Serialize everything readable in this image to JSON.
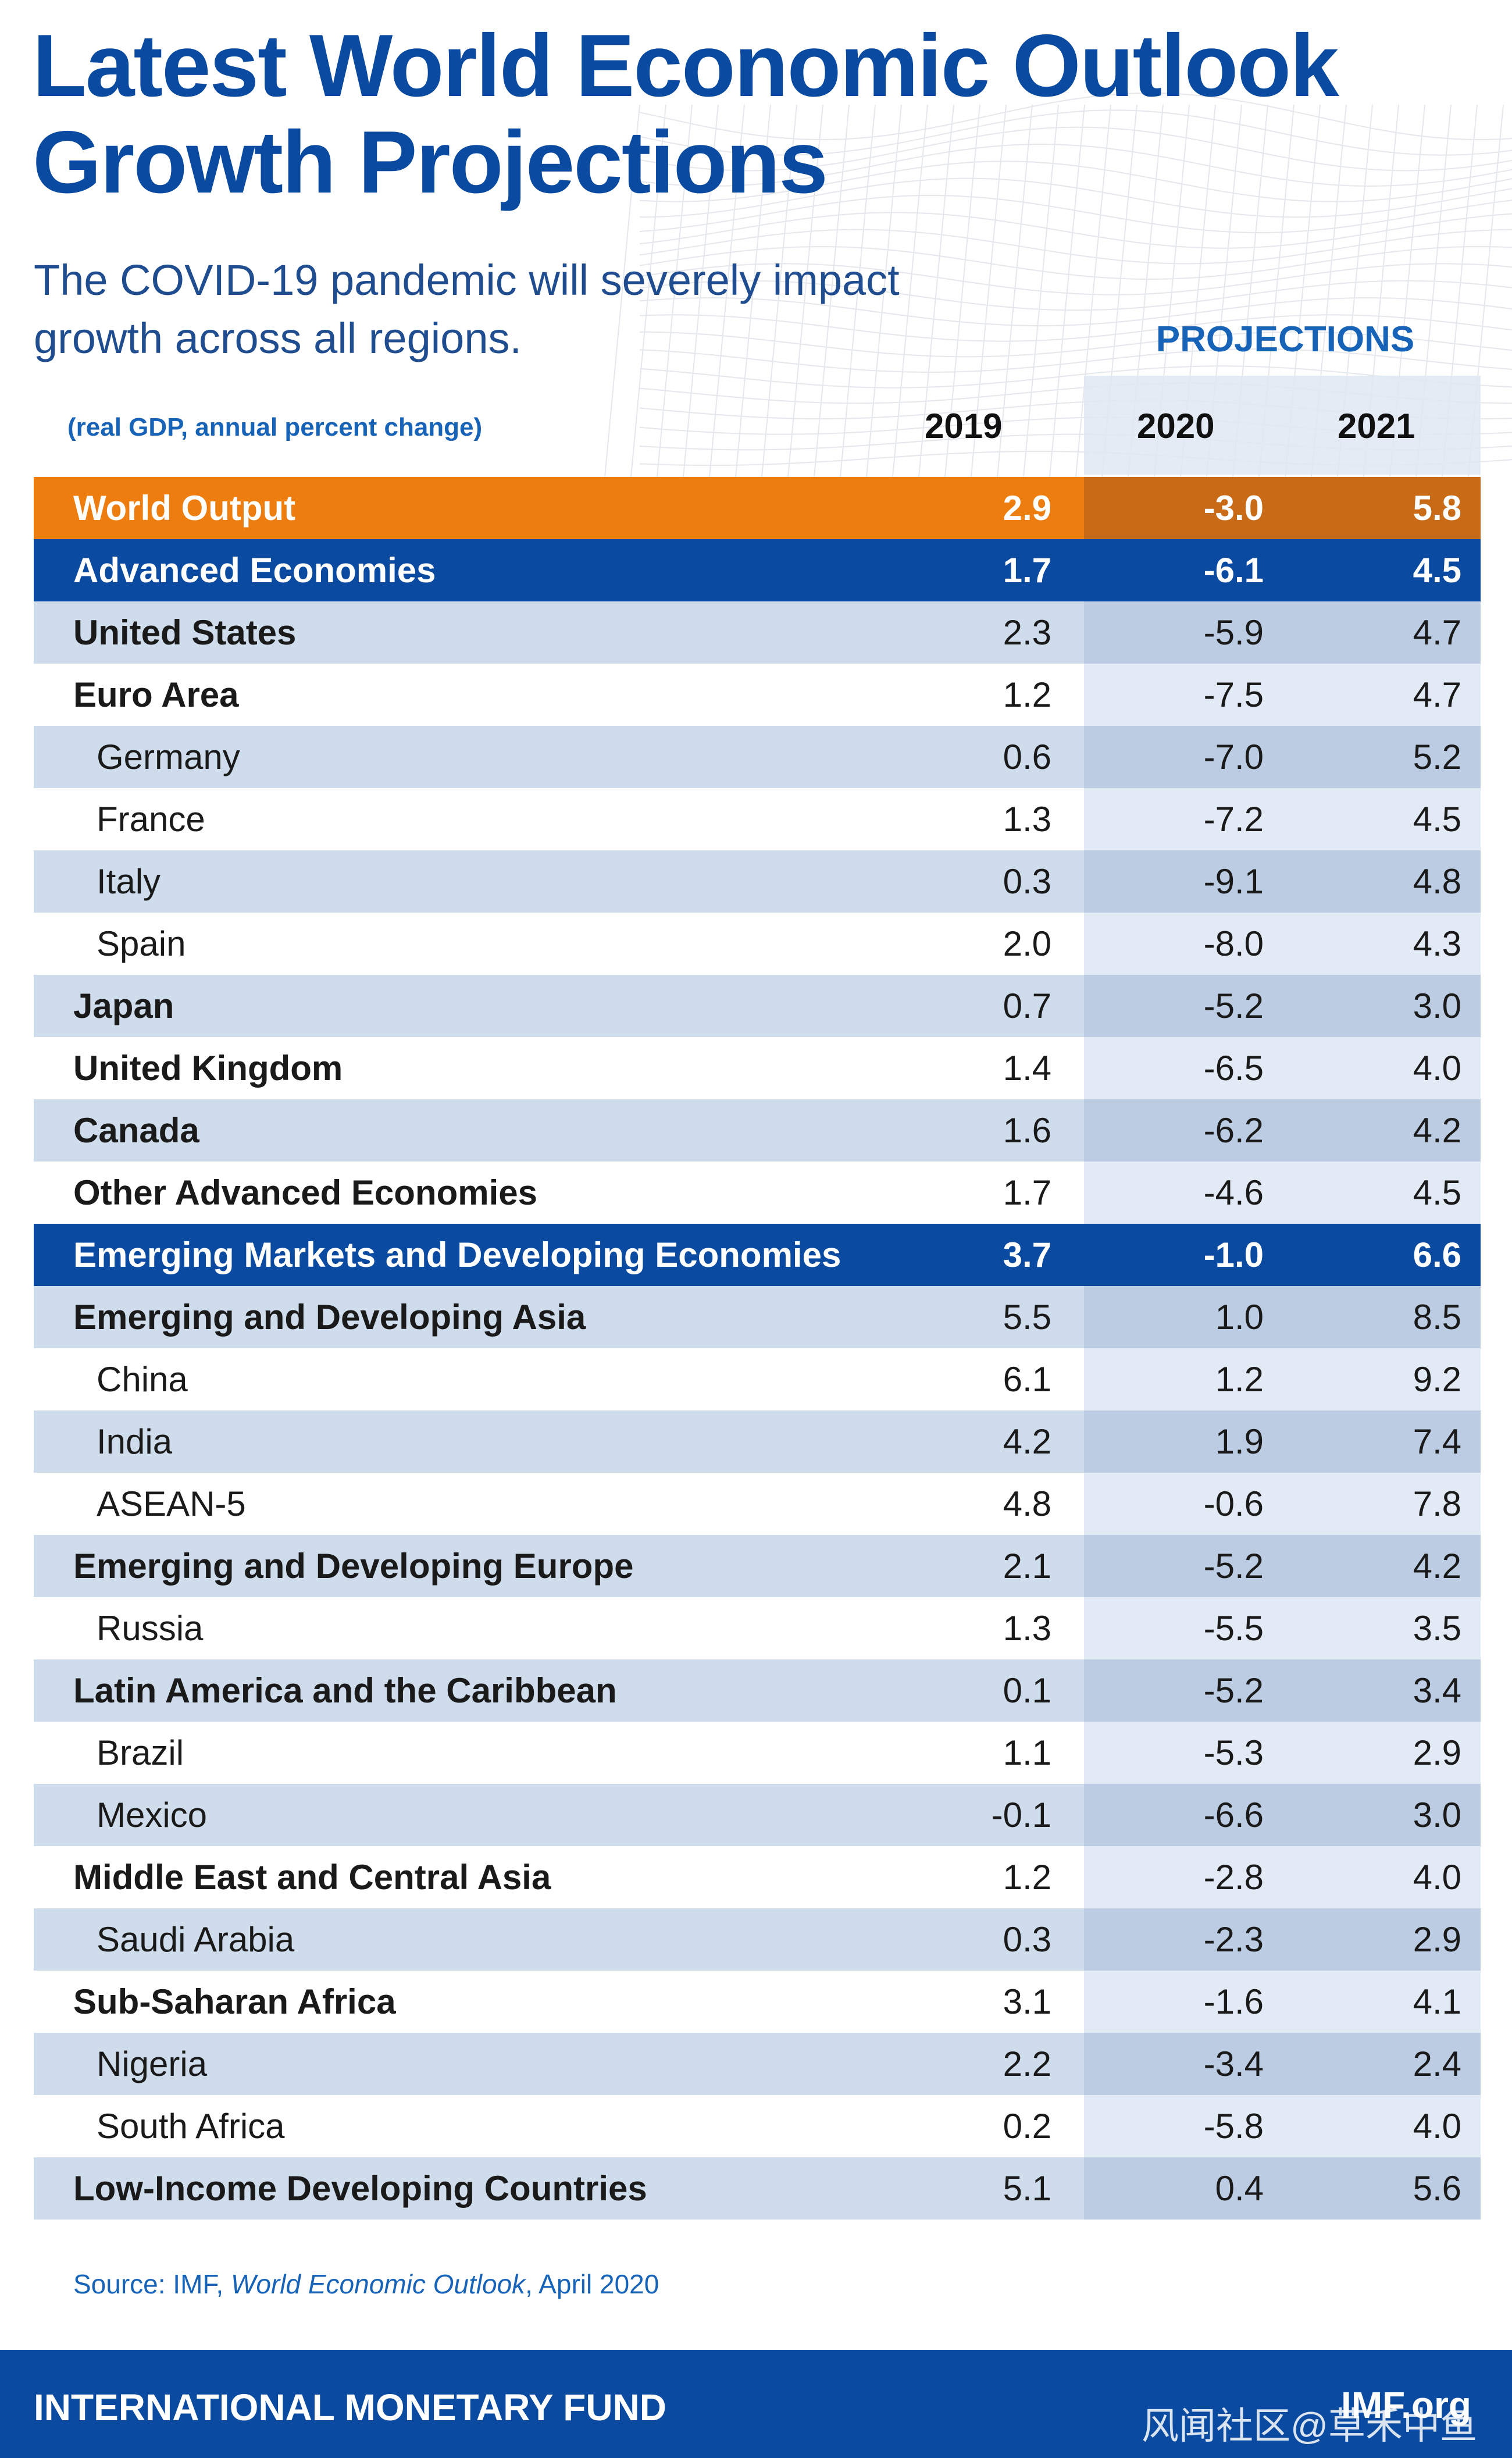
{
  "title_line1": "Latest World Economic Outlook",
  "title_line2": "Growth Projections",
  "subtitle_line1": "The COVID-19 pandemic will severely impact",
  "subtitle_line2": "growth across all regions.",
  "projections_label": "PROJECTIONS",
  "units_label": "(real GDP, annual percent change)",
  "years": [
    "2019",
    "2020",
    "2021"
  ],
  "colors": {
    "brand_blue": "#0a4aa0",
    "orange": "#ee7d0f",
    "row_light": "#cfdcec",
    "proj_shade": "#e2ebf5"
  },
  "chart_data": {
    "type": "table",
    "title": "Latest World Economic Outlook Growth Projections",
    "columns": [
      "",
      "2019",
      "2020",
      "2021"
    ],
    "rows": [
      {
        "label": "World Output",
        "level": "total",
        "values": [
          "2.9",
          "-3.0",
          "5.8"
        ]
      },
      {
        "label": "Advanced Economies",
        "level": "group",
        "values": [
          "1.7",
          "-6.1",
          "4.5"
        ]
      },
      {
        "label": "United States",
        "level": "bold",
        "values": [
          "2.3",
          "-5.9",
          "4.7"
        ]
      },
      {
        "label": "Euro Area",
        "level": "bold",
        "values": [
          "1.2",
          "-7.5",
          "4.7"
        ]
      },
      {
        "label": "Germany",
        "level": "sub",
        "values": [
          "0.6",
          "-7.0",
          "5.2"
        ]
      },
      {
        "label": "France",
        "level": "sub",
        "values": [
          "1.3",
          "-7.2",
          "4.5"
        ]
      },
      {
        "label": "Italy",
        "level": "sub",
        "values": [
          "0.3",
          "-9.1",
          "4.8"
        ]
      },
      {
        "label": "Spain",
        "level": "sub",
        "values": [
          "2.0",
          "-8.0",
          "4.3"
        ]
      },
      {
        "label": "Japan",
        "level": "bold",
        "values": [
          "0.7",
          "-5.2",
          "3.0"
        ]
      },
      {
        "label": "United Kingdom",
        "level": "bold",
        "values": [
          "1.4",
          "-6.5",
          "4.0"
        ]
      },
      {
        "label": "Canada",
        "level": "bold",
        "values": [
          "1.6",
          "-6.2",
          "4.2"
        ]
      },
      {
        "label": "Other Advanced Economies",
        "level": "bold",
        "values": [
          "1.7",
          "-4.6",
          "4.5"
        ]
      },
      {
        "label": "Emerging Markets and Developing Economies",
        "level": "group",
        "values": [
          "3.7",
          "-1.0",
          "6.6"
        ]
      },
      {
        "label": "Emerging and Developing Asia",
        "level": "bold",
        "values": [
          "5.5",
          "1.0",
          "8.5"
        ]
      },
      {
        "label": "China",
        "level": "sub",
        "values": [
          "6.1",
          "1.2",
          "9.2"
        ]
      },
      {
        "label": "India",
        "level": "sub",
        "values": [
          "4.2",
          "1.9",
          "7.4"
        ]
      },
      {
        "label": "ASEAN-5",
        "level": "sub",
        "values": [
          "4.8",
          "-0.6",
          "7.8"
        ]
      },
      {
        "label": "Emerging and Developing Europe",
        "level": "bold",
        "values": [
          "2.1",
          "-5.2",
          "4.2"
        ]
      },
      {
        "label": "Russia",
        "level": "sub",
        "values": [
          "1.3",
          "-5.5",
          "3.5"
        ]
      },
      {
        "label": "Latin America and the Caribbean",
        "level": "bold",
        "values": [
          "0.1",
          "-5.2",
          "3.4"
        ]
      },
      {
        "label": "Brazil",
        "level": "sub",
        "values": [
          "1.1",
          "-5.3",
          "2.9"
        ]
      },
      {
        "label": "Mexico",
        "level": "sub",
        "values": [
          "-0.1",
          "-6.6",
          "3.0"
        ]
      },
      {
        "label": "Middle East and Central Asia",
        "level": "bold",
        "values": [
          "1.2",
          "-2.8",
          "4.0"
        ]
      },
      {
        "label": "Saudi Arabia",
        "level": "sub",
        "values": [
          "0.3",
          "-2.3",
          "2.9"
        ]
      },
      {
        "label": "Sub-Saharan Africa",
        "level": "bold",
        "values": [
          "3.1",
          "-1.6",
          "4.1"
        ]
      },
      {
        "label": "Nigeria",
        "level": "sub",
        "values": [
          "2.2",
          "-3.4",
          "2.4"
        ]
      },
      {
        "label": "South Africa",
        "level": "sub",
        "values": [
          "0.2",
          "-5.8",
          "4.0"
        ]
      },
      {
        "label": "Low-Income Developing Countries",
        "level": "bold",
        "values": [
          "5.1",
          "0.4",
          "5.6"
        ]
      }
    ]
  },
  "source": {
    "prefix": "Source: IMF, ",
    "publication": "World Economic Outlook",
    "suffix": ", April 2020"
  },
  "footer": {
    "org": "INTERNATIONAL MONETARY FUND",
    "site": "IMF.org"
  },
  "watermark": "风闻社区@草禾中鱼"
}
